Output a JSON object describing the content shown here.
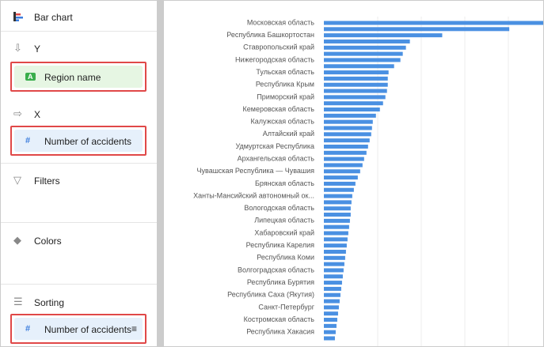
{
  "sidebar": {
    "chart_type": "Bar chart",
    "sections": [
      {
        "title": "Y",
        "item": "Region name",
        "item_icon": "A"
      },
      {
        "title": "X",
        "item": "Number of accidents",
        "item_icon": "#"
      },
      {
        "title": "Filters"
      },
      {
        "title": "Colors"
      },
      {
        "title": "Sorting",
        "item": "Number of accidents",
        "item_icon": "#"
      }
    ]
  },
  "chart_data": {
    "type": "bar",
    "orientation": "horizontal",
    "color": "#4a90e2",
    "categories": [
      "Московская область",
      null,
      "Республика Башкортостан",
      null,
      "Ставропольский край",
      null,
      "Нижегородская область",
      null,
      "Тульская область",
      null,
      "Республика Крым",
      null,
      "Приморский край",
      null,
      "Кемеровская область",
      null,
      "Калужская область",
      null,
      "Алтайский край",
      null,
      "Удмуртская Республика",
      null,
      "Архангельская область",
      null,
      "Чувашская Республика — Чувашия",
      null,
      "Брянская область",
      null,
      "Ханты-Мансийский автономный ок...",
      null,
      "Вологодская область",
      null,
      "Липецкая область",
      null,
      "Хабаровский край",
      null,
      "Республика Карелия",
      null,
      "Республика Коми",
      null,
      "Волгоградская область",
      null,
      "Республика Бурятия",
      null,
      "Республика Саха (Якутия)",
      null,
      "Санкт-Петербург",
      null,
      "Костромская область",
      null,
      "Республика Хакасия",
      null
    ],
    "values": [
      285,
      235,
      150,
      109,
      104,
      100,
      97,
      89,
      82,
      81,
      81,
      80,
      78,
      75,
      71,
      66,
      62,
      61,
      60,
      58,
      56,
      54,
      51,
      49,
      46,
      43,
      40,
      38,
      36,
      35,
      34,
      34,
      33,
      32,
      31,
      30,
      29,
      28,
      27,
      26,
      25,
      24,
      23,
      22,
      21,
      20,
      19,
      18,
      17,
      16,
      15,
      14
    ],
    "xlim": [
      0,
      280
    ]
  }
}
